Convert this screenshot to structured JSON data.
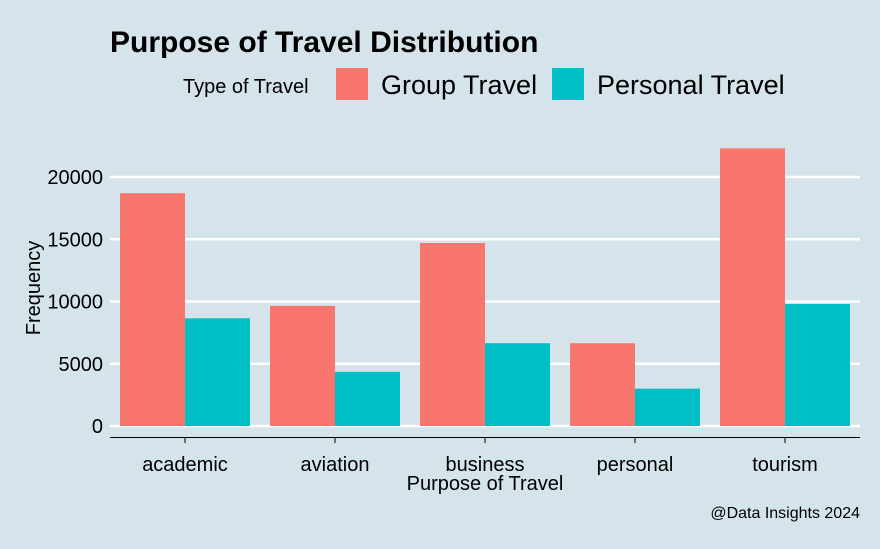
{
  "chart_data": {
    "type": "bar",
    "title": "Purpose of Travel Distribution",
    "xlabel": "Purpose of Travel",
    "ylabel": "Frequency",
    "categories": [
      "academic",
      "aviation",
      "business",
      "personal",
      "tourism"
    ],
    "series": [
      {
        "name": "Group Travel",
        "values": [
          18700,
          9650,
          14700,
          6650,
          22300
        ],
        "color": "#F8766D"
      },
      {
        "name": "Personal Travel",
        "values": [
          8650,
          4350,
          6650,
          3000,
          9800
        ],
        "color": "#00BFC4"
      }
    ],
    "ylim": [
      0,
      23000
    ],
    "yticks": [
      0,
      5000,
      10000,
      15000,
      20000
    ],
    "legend_title": "Type of Travel",
    "legend_position": "top",
    "grid": "horizontal major",
    "caption": "@Data Insights 2024"
  },
  "colors": {
    "background": "#d5e3ea",
    "grid": "#ffffff",
    "axis": "#000000"
  }
}
